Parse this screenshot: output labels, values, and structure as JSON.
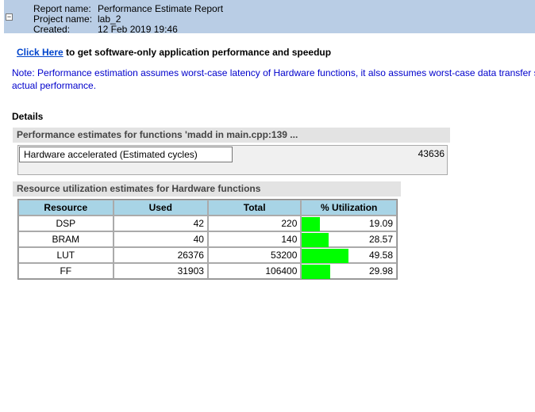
{
  "header": {
    "fields": [
      {
        "label": "Report name:",
        "value": "Performance Estimate Report"
      },
      {
        "label": "Project name:",
        "value": "lab_2"
      },
      {
        "label": "Created:",
        "value": "12 Feb 2019 19:46"
      }
    ]
  },
  "link": {
    "text": "Click Here",
    "rest": "to get software-only application performance and speedup"
  },
  "note": {
    "lines": [
      "Note: Performance estimation assumes worst-case latency of Hardware functions, it also assumes worst-case data transfer siz",
      "actual performance."
    ]
  },
  "details": {
    "title": "Details",
    "performance": {
      "title": "Performance estimates for functions 'madd in main.cpp:139 ...",
      "label": "Hardware accelerated (Estimated cycles)",
      "value": 43636
    },
    "resources": {
      "title": "Resource utilization estimates for Hardware functions",
      "columns": [
        "Resource",
        "Used",
        "Total",
        "% Utilization"
      ],
      "rows": [
        [
          "DSP",
          42,
          220,
          19.09
        ],
        [
          "BRAM",
          40,
          140,
          28.57
        ],
        [
          "LUT",
          26376,
          53200,
          49.58
        ],
        [
          "FF",
          31903,
          106400,
          29.98
        ]
      ],
      "bar_color": "#00ff00"
    }
  }
}
